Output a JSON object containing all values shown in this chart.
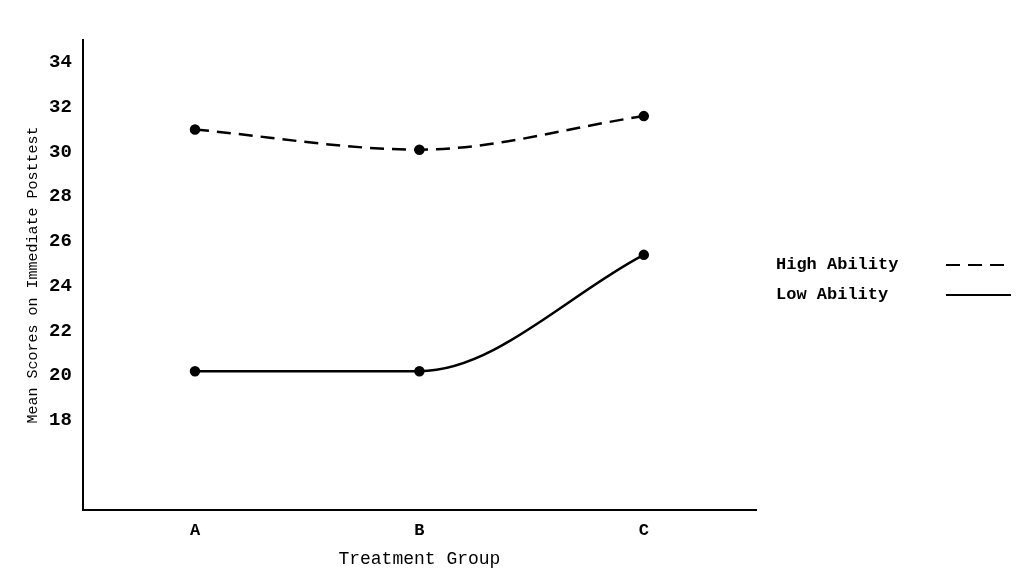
{
  "chart_data": {
    "type": "line",
    "xlabel": "Treatment Group",
    "ylabel": "Mean Scores on Immediate Posttest",
    "categories": [
      "A",
      "B",
      "C"
    ],
    "series": [
      {
        "name": "High Ability",
        "color": "#000000",
        "values": [
          31,
          30.1,
          31.6
        ],
        "line_style": "dashed"
      },
      {
        "name": "Low Ability",
        "color": "#000000",
        "values": [
          20.2,
          20.2,
          25.4
        ],
        "line_style": "solid"
      }
    ],
    "ylim": [
      14,
      35
    ],
    "yticks": [
      18,
      20,
      22,
      24,
      26,
      28,
      30,
      32,
      34
    ],
    "grid": false,
    "legend": "right",
    "marker": "circle"
  }
}
